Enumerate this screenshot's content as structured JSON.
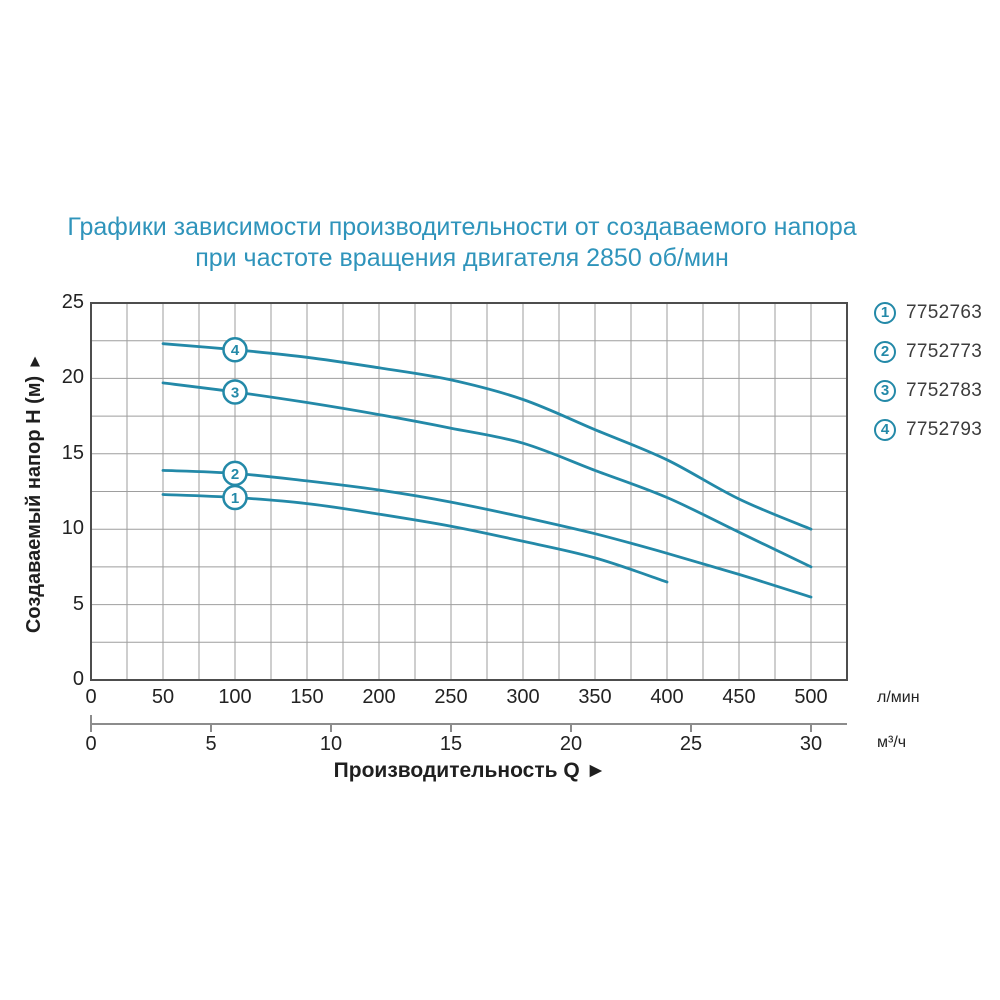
{
  "title": {
    "line1": "Графики зависимости производительности от создаваемого напора",
    "line2": "при частоте вращения двигателя 2850 об/мин"
  },
  "y_axis": {
    "label": "Создаваемый напор H (м)",
    "arrow": "▲",
    "ticks": [
      0,
      5,
      10,
      15,
      20,
      25
    ],
    "max": 25,
    "grid_step": 2.5
  },
  "x_axis": {
    "title": "Производительность Q ►",
    "primary_unit": "л/мин",
    "primary_ticks": [
      0,
      50,
      100,
      150,
      200,
      250,
      300,
      350,
      400,
      450,
      500
    ],
    "primary_max": 525,
    "primary_grid_step": 25,
    "secondary_unit": "м³/ч",
    "secondary_ticks": [
      0,
      5,
      10,
      15,
      20,
      25,
      30
    ],
    "lmin_per_m3h": 16.6667
  },
  "legend": [
    {
      "marker": "1",
      "part": "7752763"
    },
    {
      "marker": "2",
      "part": "7752773"
    },
    {
      "marker": "3",
      "part": "7752783"
    },
    {
      "marker": "4",
      "part": "7752793"
    }
  ],
  "colors": {
    "title_blue": "#2f94bb",
    "curve_teal": "#2389a8",
    "grid": "#9e9e9e",
    "border": "#4d4d4d",
    "axis2": "#8c8c8c",
    "tick_text": "#222222",
    "legend_text": "#3c3c3c"
  },
  "chart_data": {
    "type": "line",
    "title": "Графики зависимости производительности от создаваемого напора при частоте вращения двигателя 2850 об/мин",
    "xlabel": "Производительность Q",
    "ylabel": "Создаваемый напор H (м)",
    "x_units": [
      "л/мин",
      "м³/ч"
    ],
    "xlim_lmin": [
      0,
      525
    ],
    "ylim_m": [
      0,
      25
    ],
    "grid": "on",
    "legend_position": "right-outside",
    "marker_at_q": 100,
    "series": [
      {
        "marker": "1",
        "name": "7752763",
        "points": [
          [
            50,
            12.3
          ],
          [
            100,
            12.1
          ],
          [
            150,
            11.7
          ],
          [
            200,
            11.0
          ],
          [
            250,
            10.2
          ],
          [
            300,
            9.2
          ],
          [
            350,
            8.1
          ],
          [
            400,
            6.5
          ]
        ]
      },
      {
        "marker": "2",
        "name": "7752773",
        "points": [
          [
            50,
            13.9
          ],
          [
            100,
            13.7
          ],
          [
            150,
            13.2
          ],
          [
            200,
            12.6
          ],
          [
            250,
            11.8
          ],
          [
            300,
            10.8
          ],
          [
            350,
            9.7
          ],
          [
            400,
            8.4
          ],
          [
            450,
            7.0
          ],
          [
            500,
            5.5
          ]
        ]
      },
      {
        "marker": "3",
        "name": "7752783",
        "points": [
          [
            50,
            19.7
          ],
          [
            100,
            19.1
          ],
          [
            150,
            18.4
          ],
          [
            200,
            17.6
          ],
          [
            250,
            16.7
          ],
          [
            300,
            15.7
          ],
          [
            350,
            13.9
          ],
          [
            400,
            12.1
          ],
          [
            450,
            9.8
          ],
          [
            500,
            7.5
          ]
        ]
      },
      {
        "marker": "4",
        "name": "7752793",
        "points": [
          [
            50,
            22.3
          ],
          [
            100,
            21.9
          ],
          [
            150,
            21.4
          ],
          [
            200,
            20.7
          ],
          [
            250,
            19.9
          ],
          [
            300,
            18.6
          ],
          [
            350,
            16.6
          ],
          [
            400,
            14.6
          ],
          [
            450,
            12.0
          ],
          [
            500,
            10.0
          ]
        ]
      }
    ]
  }
}
